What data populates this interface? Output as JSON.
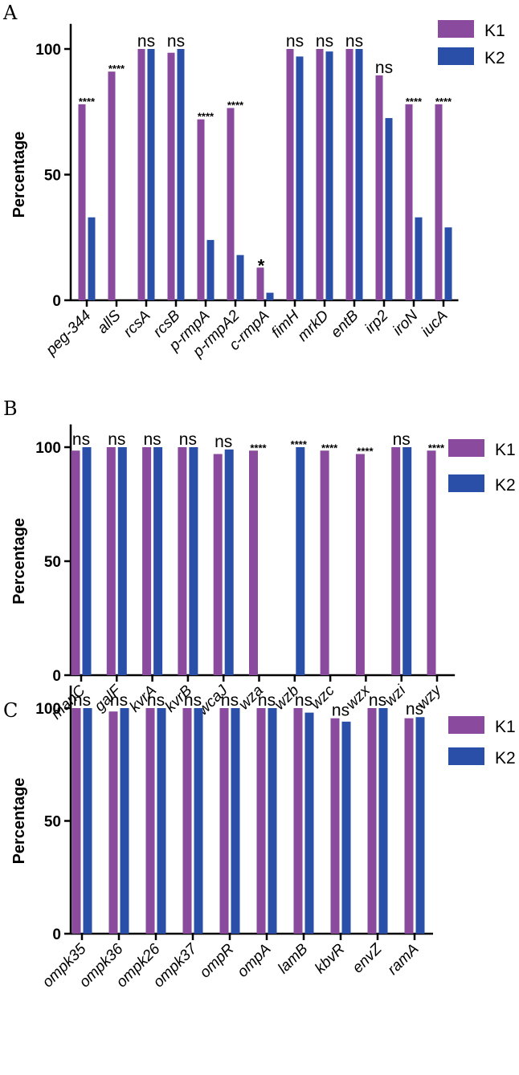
{
  "colors": {
    "K1": "#8A4A9E",
    "K2": "#2A4FA8"
  },
  "chart_data": [
    {
      "panel": "A",
      "type": "bar",
      "ylabel": "Percentage",
      "ylim": [
        0,
        110
      ],
      "yticks": [
        0,
        50,
        100
      ],
      "legend": [
        "K1",
        "K2"
      ],
      "legend_position": "top-right",
      "categories": [
        "peg-344",
        "allS",
        "rcsA",
        "rcsB",
        "p-rmpA",
        "p-rmpA2",
        "c-rmpA",
        "fimH",
        "mrkD",
        "entB",
        "irp2",
        "iroN",
        "iucA"
      ],
      "series": [
        {
          "name": "K1",
          "values": [
            78,
            91,
            100,
            98.5,
            72,
            76.5,
            13,
            100,
            100,
            100,
            89.5,
            78,
            78
          ]
        },
        {
          "name": "K2",
          "values": [
            33,
            0,
            100,
            100,
            24,
            18,
            3,
            97,
            99,
            100,
            72.5,
            33,
            29
          ]
        }
      ],
      "significance": [
        "****",
        "****",
        "ns",
        "ns",
        "****",
        "****",
        "*",
        "ns",
        "ns",
        "ns",
        "ns",
        "****",
        "****"
      ]
    },
    {
      "panel": "B",
      "type": "bar",
      "ylabel": "Percentage",
      "ylim": [
        0,
        110
      ],
      "yticks": [
        0,
        50,
        100
      ],
      "legend": [
        "K1",
        "K2"
      ],
      "legend_position": "top-right",
      "categories": [
        "manC",
        "galF",
        "kvrA",
        "kvrB",
        "wcaJ",
        "wza",
        "wzb",
        "wzc",
        "wzx",
        "wzi",
        "wzy"
      ],
      "series": [
        {
          "name": "K1",
          "values": [
            98.5,
            100,
            100,
            100,
            97,
            98.5,
            0,
            98.5,
            97,
            100,
            98.5
          ]
        },
        {
          "name": "K2",
          "values": [
            100,
            100,
            100,
            100,
            99,
            0,
            100,
            0,
            0,
            100,
            0
          ]
        }
      ],
      "significance": [
        "ns",
        "ns",
        "ns",
        "ns",
        "ns",
        "****",
        "****",
        "****",
        "****",
        "ns",
        "****"
      ]
    },
    {
      "panel": "C",
      "type": "bar",
      "ylabel": "Percentage",
      "ylim": [
        0,
        110
      ],
      "yticks": [
        0,
        50,
        100
      ],
      "legend": [
        "K1",
        "K2"
      ],
      "legend_position": "top-right",
      "categories": [
        "ompk35",
        "ompk36",
        "ompk26",
        "ompk37",
        "ompR",
        "ompA",
        "lamB",
        "kbvR",
        "envZ",
        "ramA"
      ],
      "series": [
        {
          "name": "K1",
          "values": [
            100,
            98.5,
            100,
            100,
            100,
            100,
            100,
            95.5,
            100,
            95.5
          ]
        },
        {
          "name": "K2",
          "values": [
            100,
            100,
            100,
            100,
            100,
            100,
            98,
            94,
            100,
            96
          ]
        }
      ],
      "significance": [
        "ns",
        "ns",
        "ns",
        "ns",
        "ns",
        "ns",
        "ns",
        "ns",
        "ns",
        "ns"
      ]
    }
  ]
}
